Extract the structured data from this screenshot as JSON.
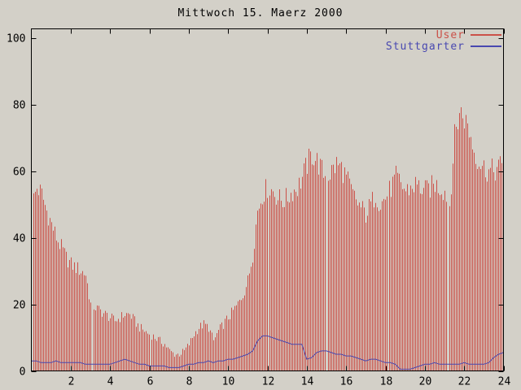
{
  "window": {
    "background": "#d3d0c8"
  },
  "chart_data": {
    "type": "bar",
    "title": "Mittwoch 15. Maerz 2000",
    "xlabel": "",
    "ylabel": "",
    "x_unit": "hour of day",
    "x_start_hour": 0,
    "x_step_hours": 0.25,
    "xlim": [
      0,
      24
    ],
    "ylim": [
      0,
      103
    ],
    "xticks": [
      2,
      4,
      6,
      8,
      10,
      12,
      14,
      16,
      18,
      20,
      22,
      24
    ],
    "yticks": [
      0,
      20,
      40,
      60,
      80,
      100
    ],
    "grid": false,
    "legend_position": "top-right-inside",
    "impulse_step_hours": 0.08333,
    "gaps_hours": [
      3.08,
      14.97,
      21.13
    ],
    "series": [
      {
        "name": "User",
        "style": "impulses",
        "color": "#cb5149",
        "values": [
          50,
          55,
          53,
          48,
          44,
          40,
          37,
          34,
          32,
          31,
          30,
          29,
          20,
          19,
          18,
          17,
          16,
          15,
          16,
          17,
          17,
          15,
          13,
          12,
          11,
          10,
          9,
          8,
          6,
          5,
          5,
          6,
          8,
          11,
          13,
          14,
          13,
          9,
          12,
          14,
          16,
          18,
          20,
          23,
          27,
          35,
          48,
          53,
          55,
          54,
          52,
          51,
          52,
          54,
          55,
          58,
          62,
          65,
          63,
          60,
          58,
          60,
          62,
          61,
          58,
          54,
          51,
          49,
          47,
          50,
          53,
          50,
          52,
          55,
          58,
          56,
          54,
          55,
          56,
          55,
          54,
          55,
          56,
          55,
          54,
          50,
          70,
          78,
          76,
          72,
          66,
          63,
          61,
          60,
          60,
          61,
          62
        ]
      },
      {
        "name": "Stuttgarter",
        "style": "line",
        "color": "#4848b0",
        "values": [
          3,
          3,
          2.5,
          2.5,
          2.5,
          3,
          2.5,
          2.5,
          2.5,
          2.5,
          2.5,
          2,
          2,
          2,
          2,
          2,
          2,
          2.5,
          3,
          3.5,
          3,
          2.5,
          2,
          2,
          1.5,
          1.5,
          1.5,
          1.5,
          1,
          1,
          1,
          1.5,
          2,
          2,
          2.5,
          2.5,
          3,
          2.5,
          3,
          3,
          3.5,
          3.5,
          4,
          4.5,
          5,
          6,
          9,
          10.5,
          10.5,
          10,
          9.5,
          9,
          8.5,
          8,
          8,
          8,
          3.5,
          4,
          5.5,
          6,
          6,
          5.5,
          5,
          5,
          4.5,
          4.5,
          4,
          3.5,
          3,
          3.5,
          3.5,
          3,
          2.5,
          2.5,
          2,
          0.5,
          0.5,
          0.5,
          1,
          1.5,
          2,
          2,
          2.5,
          2,
          2,
          2,
          2,
          2,
          2.5,
          2,
          2,
          2,
          2,
          2.5,
          4,
          5,
          5.5
        ]
      }
    ]
  }
}
